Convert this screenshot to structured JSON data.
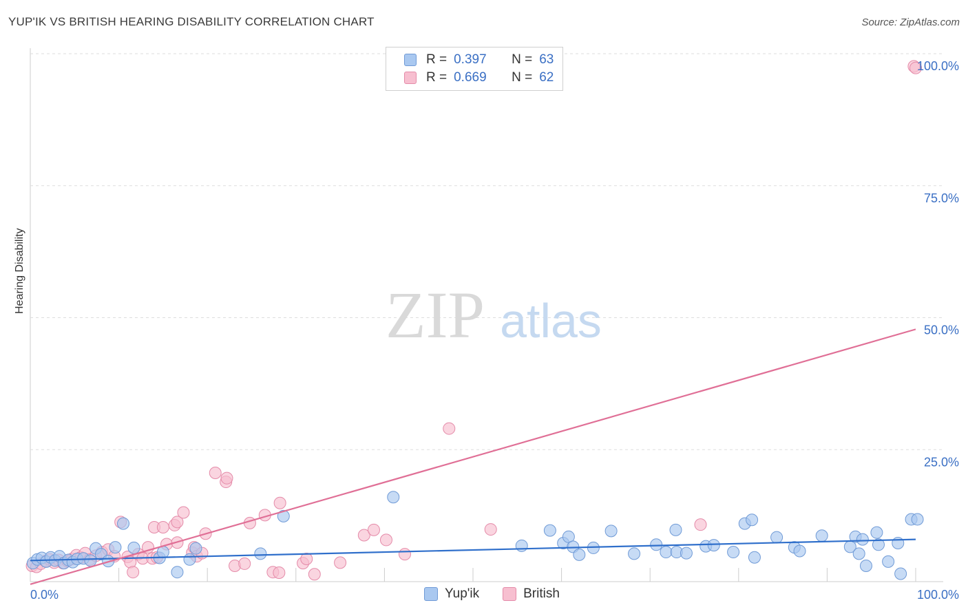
{
  "header": {
    "title": "YUP'IK VS BRITISH HEARING DISABILITY CORRELATION CHART",
    "source": "Source: ZipAtlas.com"
  },
  "watermark": {
    "zip": "ZIP",
    "atlas": "atlas"
  },
  "legend": {
    "rows": [
      {
        "r_label": "R =",
        "r_value": "0.397",
        "n_label": "N =",
        "n_value": "63",
        "color": "#a9c8f0",
        "border": "#6f9ad6"
      },
      {
        "r_label": "R =",
        "r_value": "0.669",
        "n_label": "N =",
        "n_value": "62",
        "color": "#f7bfd0",
        "border": "#e48aa8"
      }
    ]
  },
  "chart_data": {
    "type": "scatter",
    "title": "YUP'IK VS BRITISH HEARING DISABILITY CORRELATION CHART",
    "xlabel": "",
    "ylabel": "Hearing Disability",
    "xlim": [
      0,
      100
    ],
    "ylim": [
      0,
      100
    ],
    "x_tick_labels": [
      "0.0%",
      "100.0%"
    ],
    "y_tick_labels": [
      "25.0%",
      "50.0%",
      "75.0%",
      "100.0%"
    ],
    "y_ticks": [
      25,
      50,
      75,
      100
    ],
    "grid": true,
    "series": [
      {
        "name": "Yup'ik",
        "color": "#a9c8f0",
        "stroke": "#6f9ad6",
        "line_color": "#2f6fcb",
        "trend": {
          "x": [
            0,
            100
          ],
          "y": [
            4.0,
            8.0
          ]
        },
        "points": [
          [
            0.3,
            3.5
          ],
          [
            0.8,
            4.2
          ],
          [
            1.3,
            4.5
          ],
          [
            1.8,
            3.8
          ],
          [
            2.3,
            4.6
          ],
          [
            2.8,
            4.0
          ],
          [
            3.3,
            4.8
          ],
          [
            3.8,
            3.5
          ],
          [
            4.3,
            4.1
          ],
          [
            4.8,
            3.7
          ],
          [
            5.3,
            4.3
          ],
          [
            6.0,
            4.4
          ],
          [
            6.8,
            4.0
          ],
          [
            7.4,
            6.3
          ],
          [
            8.0,
            5.2
          ],
          [
            8.8,
            3.9
          ],
          [
            9.6,
            6.5
          ],
          [
            10.5,
            11.0
          ],
          [
            11.7,
            6.4
          ],
          [
            14.6,
            4.5
          ],
          [
            15.0,
            5.6
          ],
          [
            16.6,
            1.8
          ],
          [
            18.0,
            4.2
          ],
          [
            18.7,
            6.3
          ],
          [
            26.0,
            5.3
          ],
          [
            28.6,
            12.4
          ],
          [
            41.0,
            16.0
          ],
          [
            55.5,
            6.8
          ],
          [
            58.7,
            9.7
          ],
          [
            60.2,
            7.3
          ],
          [
            60.8,
            8.5
          ],
          [
            61.3,
            6.6
          ],
          [
            62.0,
            5.1
          ],
          [
            63.6,
            6.4
          ],
          [
            65.6,
            9.6
          ],
          [
            68.2,
            5.3
          ],
          [
            70.7,
            7.0
          ],
          [
            71.8,
            5.6
          ],
          [
            72.9,
            9.8
          ],
          [
            73.0,
            5.6
          ],
          [
            74.1,
            5.4
          ],
          [
            76.3,
            6.7
          ],
          [
            77.2,
            6.9
          ],
          [
            79.4,
            5.6
          ],
          [
            80.7,
            11.0
          ],
          [
            81.5,
            11.7
          ],
          [
            81.8,
            4.6
          ],
          [
            84.3,
            8.4
          ],
          [
            86.3,
            6.5
          ],
          [
            86.9,
            5.8
          ],
          [
            89.4,
            8.7
          ],
          [
            92.6,
            6.6
          ],
          [
            93.2,
            8.5
          ],
          [
            93.6,
            5.3
          ],
          [
            94.0,
            8.0
          ],
          [
            94.4,
            3.0
          ],
          [
            95.6,
            9.3
          ],
          [
            95.8,
            7.0
          ],
          [
            96.9,
            3.8
          ],
          [
            98.0,
            7.3
          ],
          [
            98.3,
            1.5
          ],
          [
            99.5,
            11.8
          ],
          [
            100.2,
            11.8
          ]
        ]
      },
      {
        "name": "British",
        "color": "#f7bfd0",
        "stroke": "#e48aa8",
        "line_color": "#e06f96",
        "trend": {
          "x": [
            0,
            100
          ],
          "y": [
            -0.5,
            47.8
          ]
        },
        "points": [
          [
            0.2,
            3.0
          ],
          [
            0.7,
            2.8
          ],
          [
            1.2,
            3.4
          ],
          [
            1.7,
            3.9
          ],
          [
            2.2,
            4.2
          ],
          [
            2.7,
            3.6
          ],
          [
            3.2,
            4.1
          ],
          [
            3.7,
            3.5
          ],
          [
            4.2,
            3.9
          ],
          [
            4.7,
            4.3
          ],
          [
            5.2,
            5.0
          ],
          [
            5.7,
            4.6
          ],
          [
            6.2,
            5.4
          ],
          [
            6.7,
            4.2
          ],
          [
            7.4,
            4.9
          ],
          [
            8.1,
            5.6
          ],
          [
            8.8,
            6.1
          ],
          [
            9.5,
            4.8
          ],
          [
            10.2,
            11.3
          ],
          [
            11.0,
            4.7
          ],
          [
            11.3,
            3.7
          ],
          [
            11.6,
            1.8
          ],
          [
            12.2,
            5.2
          ],
          [
            12.7,
            4.4
          ],
          [
            13.3,
            6.5
          ],
          [
            13.8,
            4.4
          ],
          [
            14.3,
            4.6
          ],
          [
            14.0,
            10.3
          ],
          [
            15.0,
            10.3
          ],
          [
            15.4,
            7.1
          ],
          [
            16.3,
            10.7
          ],
          [
            16.6,
            11.3
          ],
          [
            16.6,
            7.4
          ],
          [
            17.3,
            13.1
          ],
          [
            18.3,
            5.5
          ],
          [
            18.5,
            6.5
          ],
          [
            18.8,
            4.8
          ],
          [
            19.4,
            5.4
          ],
          [
            19.8,
            9.1
          ],
          [
            20.9,
            20.6
          ],
          [
            22.1,
            18.9
          ],
          [
            22.2,
            19.6
          ],
          [
            23.1,
            3.0
          ],
          [
            24.2,
            3.4
          ],
          [
            24.8,
            11.1
          ],
          [
            26.5,
            12.6
          ],
          [
            27.4,
            1.8
          ],
          [
            28.1,
            1.7
          ],
          [
            28.2,
            14.9
          ],
          [
            30.8,
            3.5
          ],
          [
            31.2,
            4.3
          ],
          [
            32.1,
            1.4
          ],
          [
            35.0,
            3.6
          ],
          [
            37.7,
            8.8
          ],
          [
            38.8,
            9.8
          ],
          [
            40.2,
            7.9
          ],
          [
            42.3,
            5.2
          ],
          [
            47.3,
            29.0
          ],
          [
            52.0,
            9.9
          ],
          [
            75.7,
            10.8
          ],
          [
            99.8,
            97.6
          ],
          [
            100.0,
            97.3
          ]
        ]
      }
    ]
  },
  "bottom_legend": {
    "items": [
      "Yup'ik",
      "British"
    ]
  }
}
